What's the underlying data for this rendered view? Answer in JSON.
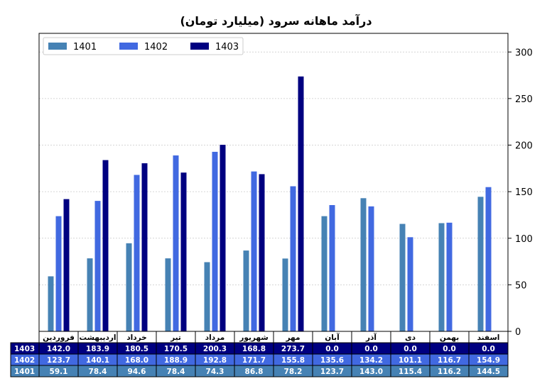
{
  "chart_data": {
    "type": "bar",
    "title": "درآمد ماهانه سرود (میلیارد تومان)",
    "xlabel": "",
    "ylabel": "",
    "ylim": [
      0,
      320
    ],
    "yticks": [
      0,
      50,
      100,
      150,
      200,
      250,
      300
    ],
    "grid": "horizontal dashed",
    "y_axis_side": "right",
    "legend_position": "top-left",
    "categories": [
      "فروردین",
      "اردیبهشت",
      "خرداد",
      "تیر",
      "مرداد",
      "شهریور",
      "مهر",
      "آبان",
      "آذر",
      "دی",
      "بهمن",
      "اسفند"
    ],
    "series": [
      {
        "name": "1401",
        "color": "#4682b4",
        "values": [
          59.1,
          78.4,
          94.6,
          78.4,
          74.3,
          86.8,
          78.2,
          123.7,
          143.0,
          115.4,
          116.2,
          144.5
        ]
      },
      {
        "name": "1402",
        "color": "#4169e1",
        "values": [
          123.7,
          140.1,
          168.0,
          188.9,
          192.8,
          171.7,
          155.8,
          135.6,
          134.2,
          101.1,
          116.7,
          154.9
        ]
      },
      {
        "name": "1403",
        "color": "#000080",
        "values": [
          142.0,
          183.9,
          180.5,
          170.5,
          200.3,
          168.8,
          273.7,
          0.0,
          0.0,
          0.0,
          0.0,
          0.0
        ]
      }
    ],
    "table": {
      "row_order": [
        "1403",
        "1402",
        "1401"
      ]
    }
  }
}
